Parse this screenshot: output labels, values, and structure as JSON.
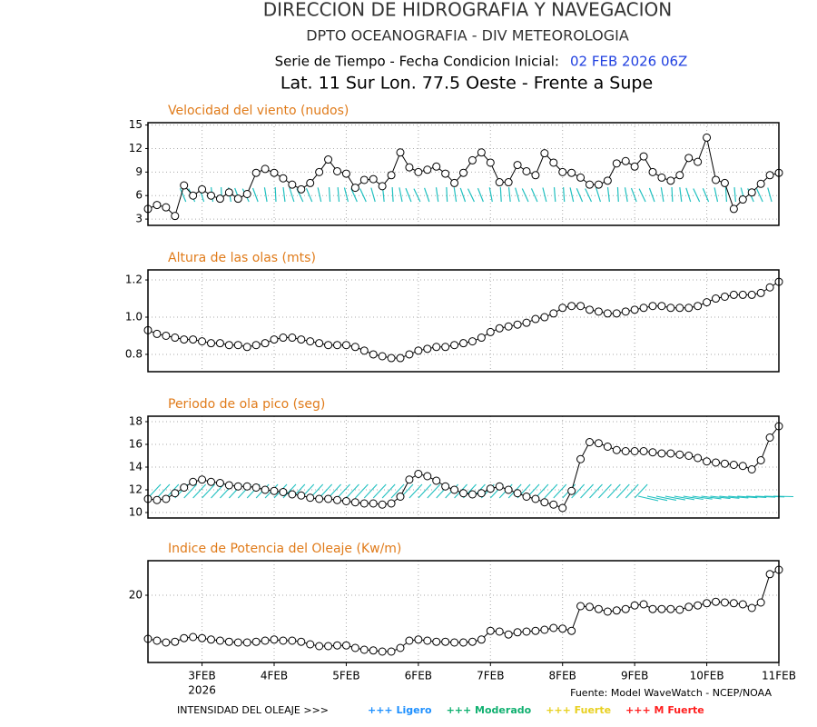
{
  "header": {
    "title": "DIRECCION DE HIDROGRAFIA Y NAVEGACION",
    "subtitle": "DPTO OCEANOGRAFIA - DIV METEOROLOGIA",
    "series_label": "Serie de Tiempo - Fecha Condicion Inicial:",
    "init_date": "02 FEB 2026 06Z",
    "location": "Lat. 11 Sur  Lon. 77.5 Oeste - Frente a Supe"
  },
  "chart_data": [
    {
      "type": "line",
      "title": "Velocidad del viento (nudos)",
      "color": "#000000",
      "grid": true,
      "ylim": [
        2.2,
        15.3
      ],
      "yticks": [
        3,
        6,
        9,
        12,
        15
      ],
      "values": [
        4.3,
        4.8,
        4.5,
        3.4,
        7.3,
        6.0,
        6.8,
        6.0,
        5.6,
        6.4,
        5.6,
        6.2,
        8.9,
        9.4,
        8.9,
        8.2,
        7.4,
        6.8,
        7.6,
        9.0,
        10.6,
        9.1,
        8.8,
        7.0,
        8.0,
        8.1,
        7.2,
        8.6,
        11.5,
        9.6,
        9.0,
        9.3,
        9.7,
        8.8,
        7.6,
        8.9,
        10.5,
        11.5,
        10.2,
        7.7,
        7.7,
        9.9,
        9.1,
        8.6,
        11.4,
        10.2,
        9.0,
        8.9,
        8.3,
        7.4,
        7.4,
        7.9,
        10.1,
        10.4,
        9.7,
        11.0,
        9.0,
        8.3,
        7.9,
        8.6,
        10.8,
        10.3,
        13.4,
        8.0,
        7.6,
        4.3,
        5.5,
        6.4,
        7.5,
        8.6,
        8.9
      ]
    },
    {
      "type": "line",
      "title": "Altura de las olas (mts)",
      "color": "#000000",
      "grid": true,
      "ylim": [
        0.707,
        1.254
      ],
      "yticks": [
        {
          "value": 0.8,
          "label": "0.8"
        },
        {
          "value": 1.0,
          "label": "1.0"
        },
        {
          "value": 1.2,
          "label": "1.2"
        }
      ],
      "values": [
        0.93,
        0.91,
        0.9,
        0.89,
        0.88,
        0.88,
        0.87,
        0.86,
        0.86,
        0.85,
        0.85,
        0.84,
        0.85,
        0.86,
        0.88,
        0.89,
        0.89,
        0.88,
        0.87,
        0.86,
        0.85,
        0.85,
        0.85,
        0.84,
        0.82,
        0.8,
        0.79,
        0.78,
        0.78,
        0.8,
        0.82,
        0.83,
        0.84,
        0.84,
        0.85,
        0.86,
        0.87,
        0.89,
        0.92,
        0.94,
        0.95,
        0.96,
        0.97,
        0.99,
        1.0,
        1.02,
        1.05,
        1.06,
        1.06,
        1.04,
        1.03,
        1.02,
        1.02,
        1.03,
        1.04,
        1.05,
        1.06,
        1.06,
        1.05,
        1.05,
        1.05,
        1.06,
        1.08,
        1.1,
        1.11,
        1.12,
        1.12,
        1.12,
        1.13,
        1.16,
        1.19
      ]
    },
    {
      "type": "line",
      "title": "Periodo de ola pico (seg)",
      "color": "#000000",
      "grid": true,
      "ylim": [
        9.52,
        18.48
      ],
      "yticks": [
        10,
        12,
        14,
        16,
        18
      ],
      "values": [
        11.2,
        11.1,
        11.2,
        11.7,
        12.2,
        12.7,
        12.9,
        12.7,
        12.6,
        12.4,
        12.3,
        12.3,
        12.2,
        12.0,
        11.9,
        11.8,
        11.6,
        11.5,
        11.3,
        11.2,
        11.2,
        11.1,
        11.0,
        10.9,
        10.8,
        10.8,
        10.7,
        10.8,
        11.4,
        12.9,
        13.4,
        13.2,
        12.8,
        12.3,
        12.0,
        11.7,
        11.6,
        11.7,
        12.1,
        12.3,
        12.0,
        11.7,
        11.4,
        11.2,
        10.9,
        10.7,
        10.4,
        11.9,
        14.7,
        16.2,
        16.1,
        15.8,
        15.5,
        15.4,
        15.4,
        15.4,
        15.3,
        15.2,
        15.2,
        15.1,
        15.0,
        14.8,
        14.5,
        14.4,
        14.3,
        14.2,
        14.1,
        13.8,
        14.6,
        16.6,
        17.6
      ]
    },
    {
      "type": "line",
      "title": "Indice de Potencia del Oleaje (Kw/m)",
      "color": "#000000",
      "grid": true,
      "ylim": [
        10.75,
        24.75
      ],
      "yticks": [
        20
      ],
      "values": [
        14.0,
        13.75,
        13.5,
        13.6,
        14.1,
        14.25,
        14.1,
        13.9,
        13.75,
        13.6,
        13.5,
        13.5,
        13.6,
        13.75,
        13.9,
        13.75,
        13.75,
        13.6,
        13.25,
        13.0,
        13.0,
        13.1,
        13.1,
        12.75,
        12.5,
        12.4,
        12.25,
        12.25,
        12.75,
        13.75,
        13.9,
        13.75,
        13.6,
        13.6,
        13.5,
        13.5,
        13.6,
        13.9,
        15.1,
        15.0,
        14.6,
        14.9,
        15.0,
        15.1,
        15.25,
        15.5,
        15.4,
        15.1,
        18.5,
        18.4,
        18.1,
        17.75,
        17.9,
        18.1,
        18.6,
        18.75,
        18.1,
        18.1,
        18.1,
        18.0,
        18.4,
        18.6,
        18.9,
        19.1,
        19.0,
        18.9,
        18.75,
        18.25,
        19.0,
        22.9,
        23.5
      ],
      "categories": [
        null,
        null,
        null,
        null,
        null,
        null,
        "3FEB",
        null,
        null,
        null,
        null,
        null,
        null,
        null,
        "4FEB",
        null,
        null,
        null,
        null,
        null,
        null,
        null,
        "5FEB",
        null,
        null,
        null,
        null,
        null,
        null,
        null,
        "6FEB",
        null,
        null,
        null,
        null,
        null,
        null,
        null,
        "7FEB",
        null,
        null,
        null,
        null,
        null,
        null,
        null,
        "8FEB",
        null,
        null,
        null,
        null,
        null,
        null,
        null,
        "9FEB",
        null,
        null,
        null,
        null,
        null,
        null,
        null,
        "10FEB",
        null,
        null,
        null,
        null,
        null,
        null,
        null,
        "11FEB"
      ],
      "year_label": "2026"
    }
  ],
  "footer": {
    "source": "Fuente: Model WaveWatch - NCEP/NOAA",
    "legend_label": "INTENSIDAD DEL OLEAJE >>>",
    "legend": [
      {
        "name": "+++ Ligero",
        "color": "#1e90ff"
      },
      {
        "name": "+++ Moderado",
        "color": "#10b070"
      },
      {
        "name": "+++ Fuerte",
        "color": "#e8d020"
      },
      {
        "name": "+++ M Fuerte",
        "color": "#ff2020"
      }
    ]
  }
}
